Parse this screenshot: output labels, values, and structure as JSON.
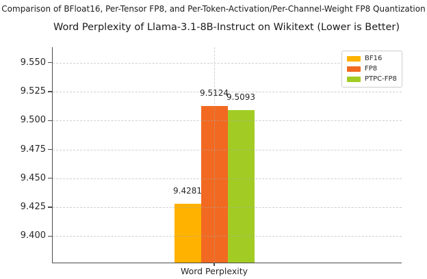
{
  "chart_data": {
    "type": "bar",
    "suptitle": "Comparison of BFloat16, Per-Tensor FP8, and Per-Token-Activation/Per-Channel-Weight FP8 Quantization",
    "title": "Word Perplexity of Llama-3.1-8B-Instruct on Wikitext (Lower is Better)",
    "categories": [
      "Word Perplexity"
    ],
    "series": [
      {
        "name": "BF16",
        "values": [
          9.4281
        ],
        "color": "#FFB200",
        "value_label": "9.4281"
      },
      {
        "name": "FP8",
        "values": [
          9.5124
        ],
        "color": "#F26A21",
        "value_label": "9.5124"
      },
      {
        "name": "PTPC-FP8",
        "values": [
          9.5093
        ],
        "color": "#A2CC24",
        "value_label": "9.5093"
      }
    ],
    "xlabel": "",
    "ylabel": "",
    "ylim": [
      9.377,
      9.5635
    ],
    "yticks": [
      9.4,
      9.425,
      9.45,
      9.475,
      9.5,
      9.525,
      9.55
    ],
    "ytick_labels": [
      "9.400",
      "9.425",
      "9.450",
      "9.475",
      "9.500",
      "9.525",
      "9.550"
    ],
    "grid": true,
    "grid_style": "dashed",
    "legend_position": "upper right",
    "axis_color": "#4a4a4a",
    "text_color": "#262626",
    "background_color": "#ffffff"
  }
}
